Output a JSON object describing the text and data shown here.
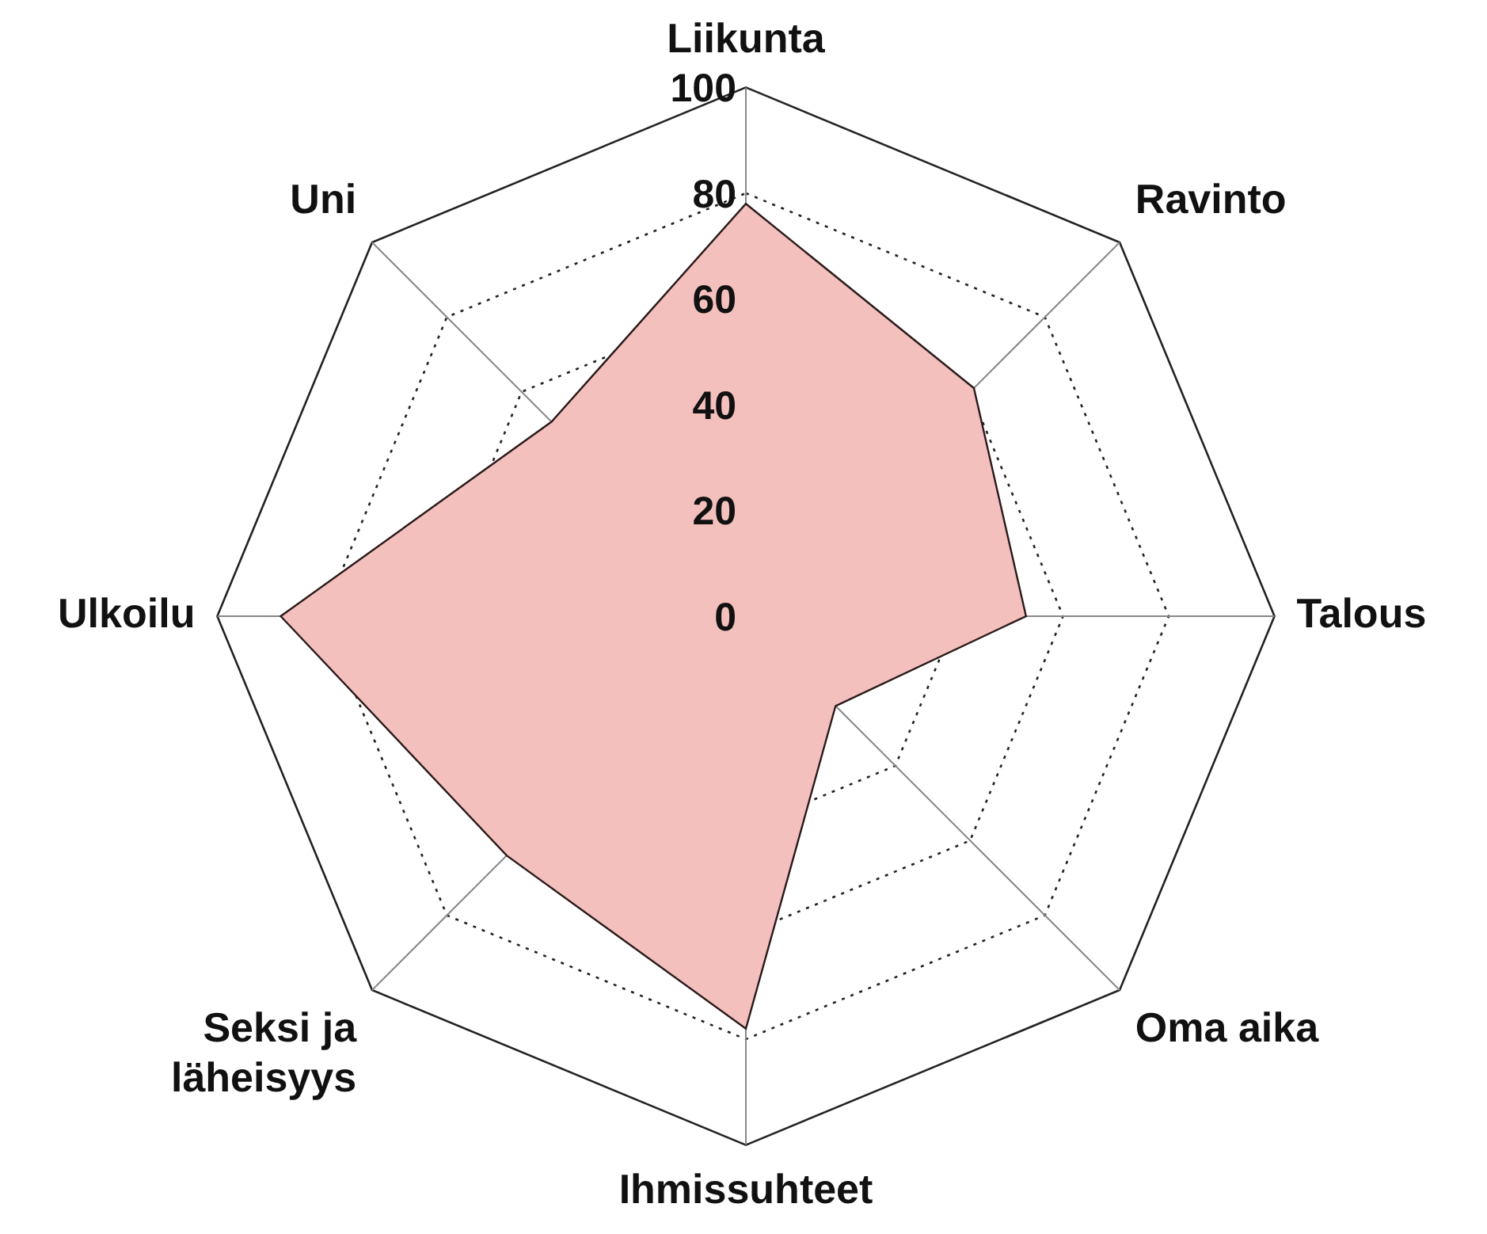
{
  "chart_data": {
    "type": "radar",
    "categories": [
      "Liikunta",
      "Ravinto",
      "Talous",
      "Oma aika",
      "Ihmissuhteet",
      "Seksi ja läheisyys",
      "Ulkoilu",
      "Uni"
    ],
    "series": [
      {
        "color": "#f4c0bd",
        "values": [
          78,
          61,
          53,
          24,
          78,
          64,
          88,
          52
        ]
      }
    ],
    "ylim": [
      0,
      100
    ],
    "yticks": [
      0,
      20,
      40,
      60,
      80,
      100
    ],
    "grid": true,
    "legend": false,
    "marker": "none"
  }
}
